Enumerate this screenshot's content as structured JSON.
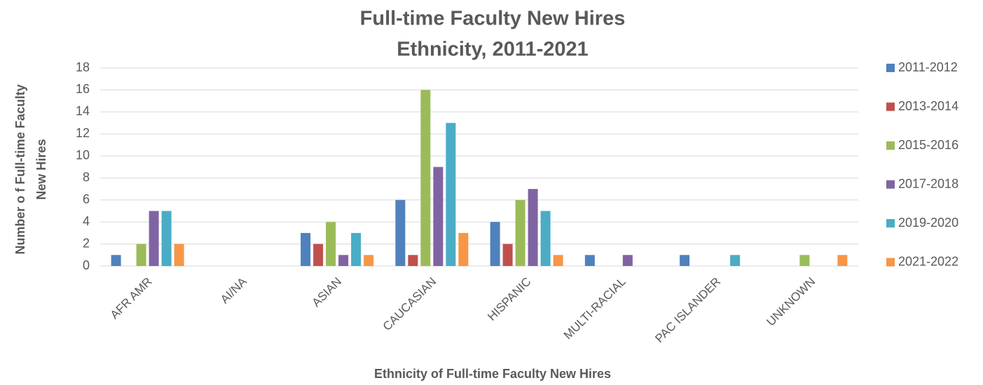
{
  "chart_data": {
    "type": "bar",
    "title": [
      "Full-time Faculty New Hires",
      "Ethnicity, 2011-2021"
    ],
    "ylabel": [
      "Number o f Full-time Faculty",
      "New Hires"
    ],
    "xlabel": "Ethnicity of Full-time Faculty New Hires",
    "categories": [
      "AFR AMR",
      "AI/NA",
      "ASIAN",
      "CAUCASIAN",
      "HISPANIC",
      "MULTI-RACIAL",
      "PAC ISLANDER",
      "UNKNOWN"
    ],
    "series": [
      {
        "name": "2011-2012",
        "color": "#4f81bd",
        "values": [
          1,
          0,
          3,
          6,
          4,
          1,
          1,
          0
        ]
      },
      {
        "name": "2013-2014",
        "color": "#c0504d",
        "values": [
          0,
          0,
          2,
          1,
          2,
          0,
          0,
          0
        ]
      },
      {
        "name": "2015-2016",
        "color": "#9bbb59",
        "values": [
          2,
          0,
          4,
          16,
          6,
          0,
          0,
          1
        ]
      },
      {
        "name": "2017-2018",
        "color": "#8064a2",
        "values": [
          5,
          0,
          1,
          9,
          7,
          1,
          0,
          0
        ]
      },
      {
        "name": "2019-2020",
        "color": "#4bacc6",
        "values": [
          5,
          0,
          3,
          13,
          5,
          0,
          1,
          0
        ]
      },
      {
        "name": "2021-2022",
        "color": "#f79646",
        "values": [
          2,
          0,
          1,
          3,
          1,
          0,
          0,
          1
        ]
      }
    ],
    "ylim": [
      0,
      18
    ],
    "yticks": [
      0,
      2,
      4,
      6,
      8,
      10,
      12,
      14,
      16,
      18
    ],
    "grid": true,
    "legend": "right"
  }
}
